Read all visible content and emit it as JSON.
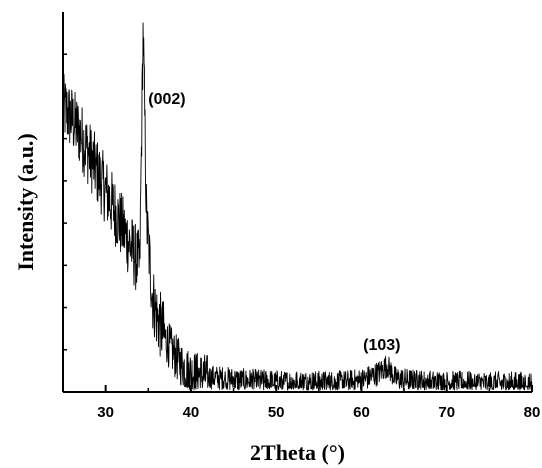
{
  "chart_data": {
    "type": "line",
    "title": "",
    "xlabel": "2Theta (°)",
    "ylabel": "Intensity (a.u.)",
    "xlim": [
      25,
      80
    ],
    "ylim": [
      0,
      100
    ],
    "x_ticks": [
      30,
      40,
      50,
      60,
      70,
      80
    ],
    "y_tick_labels": false,
    "grid": false,
    "legend": "none",
    "line_color": "#000000",
    "annotations": [
      {
        "text": "(002)",
        "x": 34.4,
        "y": 78
      },
      {
        "text": "(103)",
        "x": 63.0,
        "y": 12
      }
    ],
    "series": [
      {
        "x": [
          25,
          26,
          27,
          28,
          29,
          30,
          31,
          32,
          33,
          34,
          34.4,
          34.8,
          35.5,
          36,
          37,
          38,
          39,
          40,
          42,
          44,
          46,
          48,
          50,
          52,
          54,
          56,
          58,
          60,
          62,
          63,
          64,
          66,
          68,
          70,
          72,
          74,
          76,
          78,
          80
        ],
        "y": [
          75,
          72,
          68,
          63,
          58,
          53,
          48,
          43,
          38,
          33,
          96,
          45,
          25,
          20,
          14,
          10,
          7,
          5,
          4,
          3.5,
          3,
          2.8,
          2.6,
          2.5,
          2.4,
          2.4,
          2.5,
          3,
          5,
          7,
          3.5,
          2.8,
          2.5,
          2.4,
          2.3,
          2.3,
          2.2,
          2.2,
          2.2
        ]
      }
    ]
  }
}
